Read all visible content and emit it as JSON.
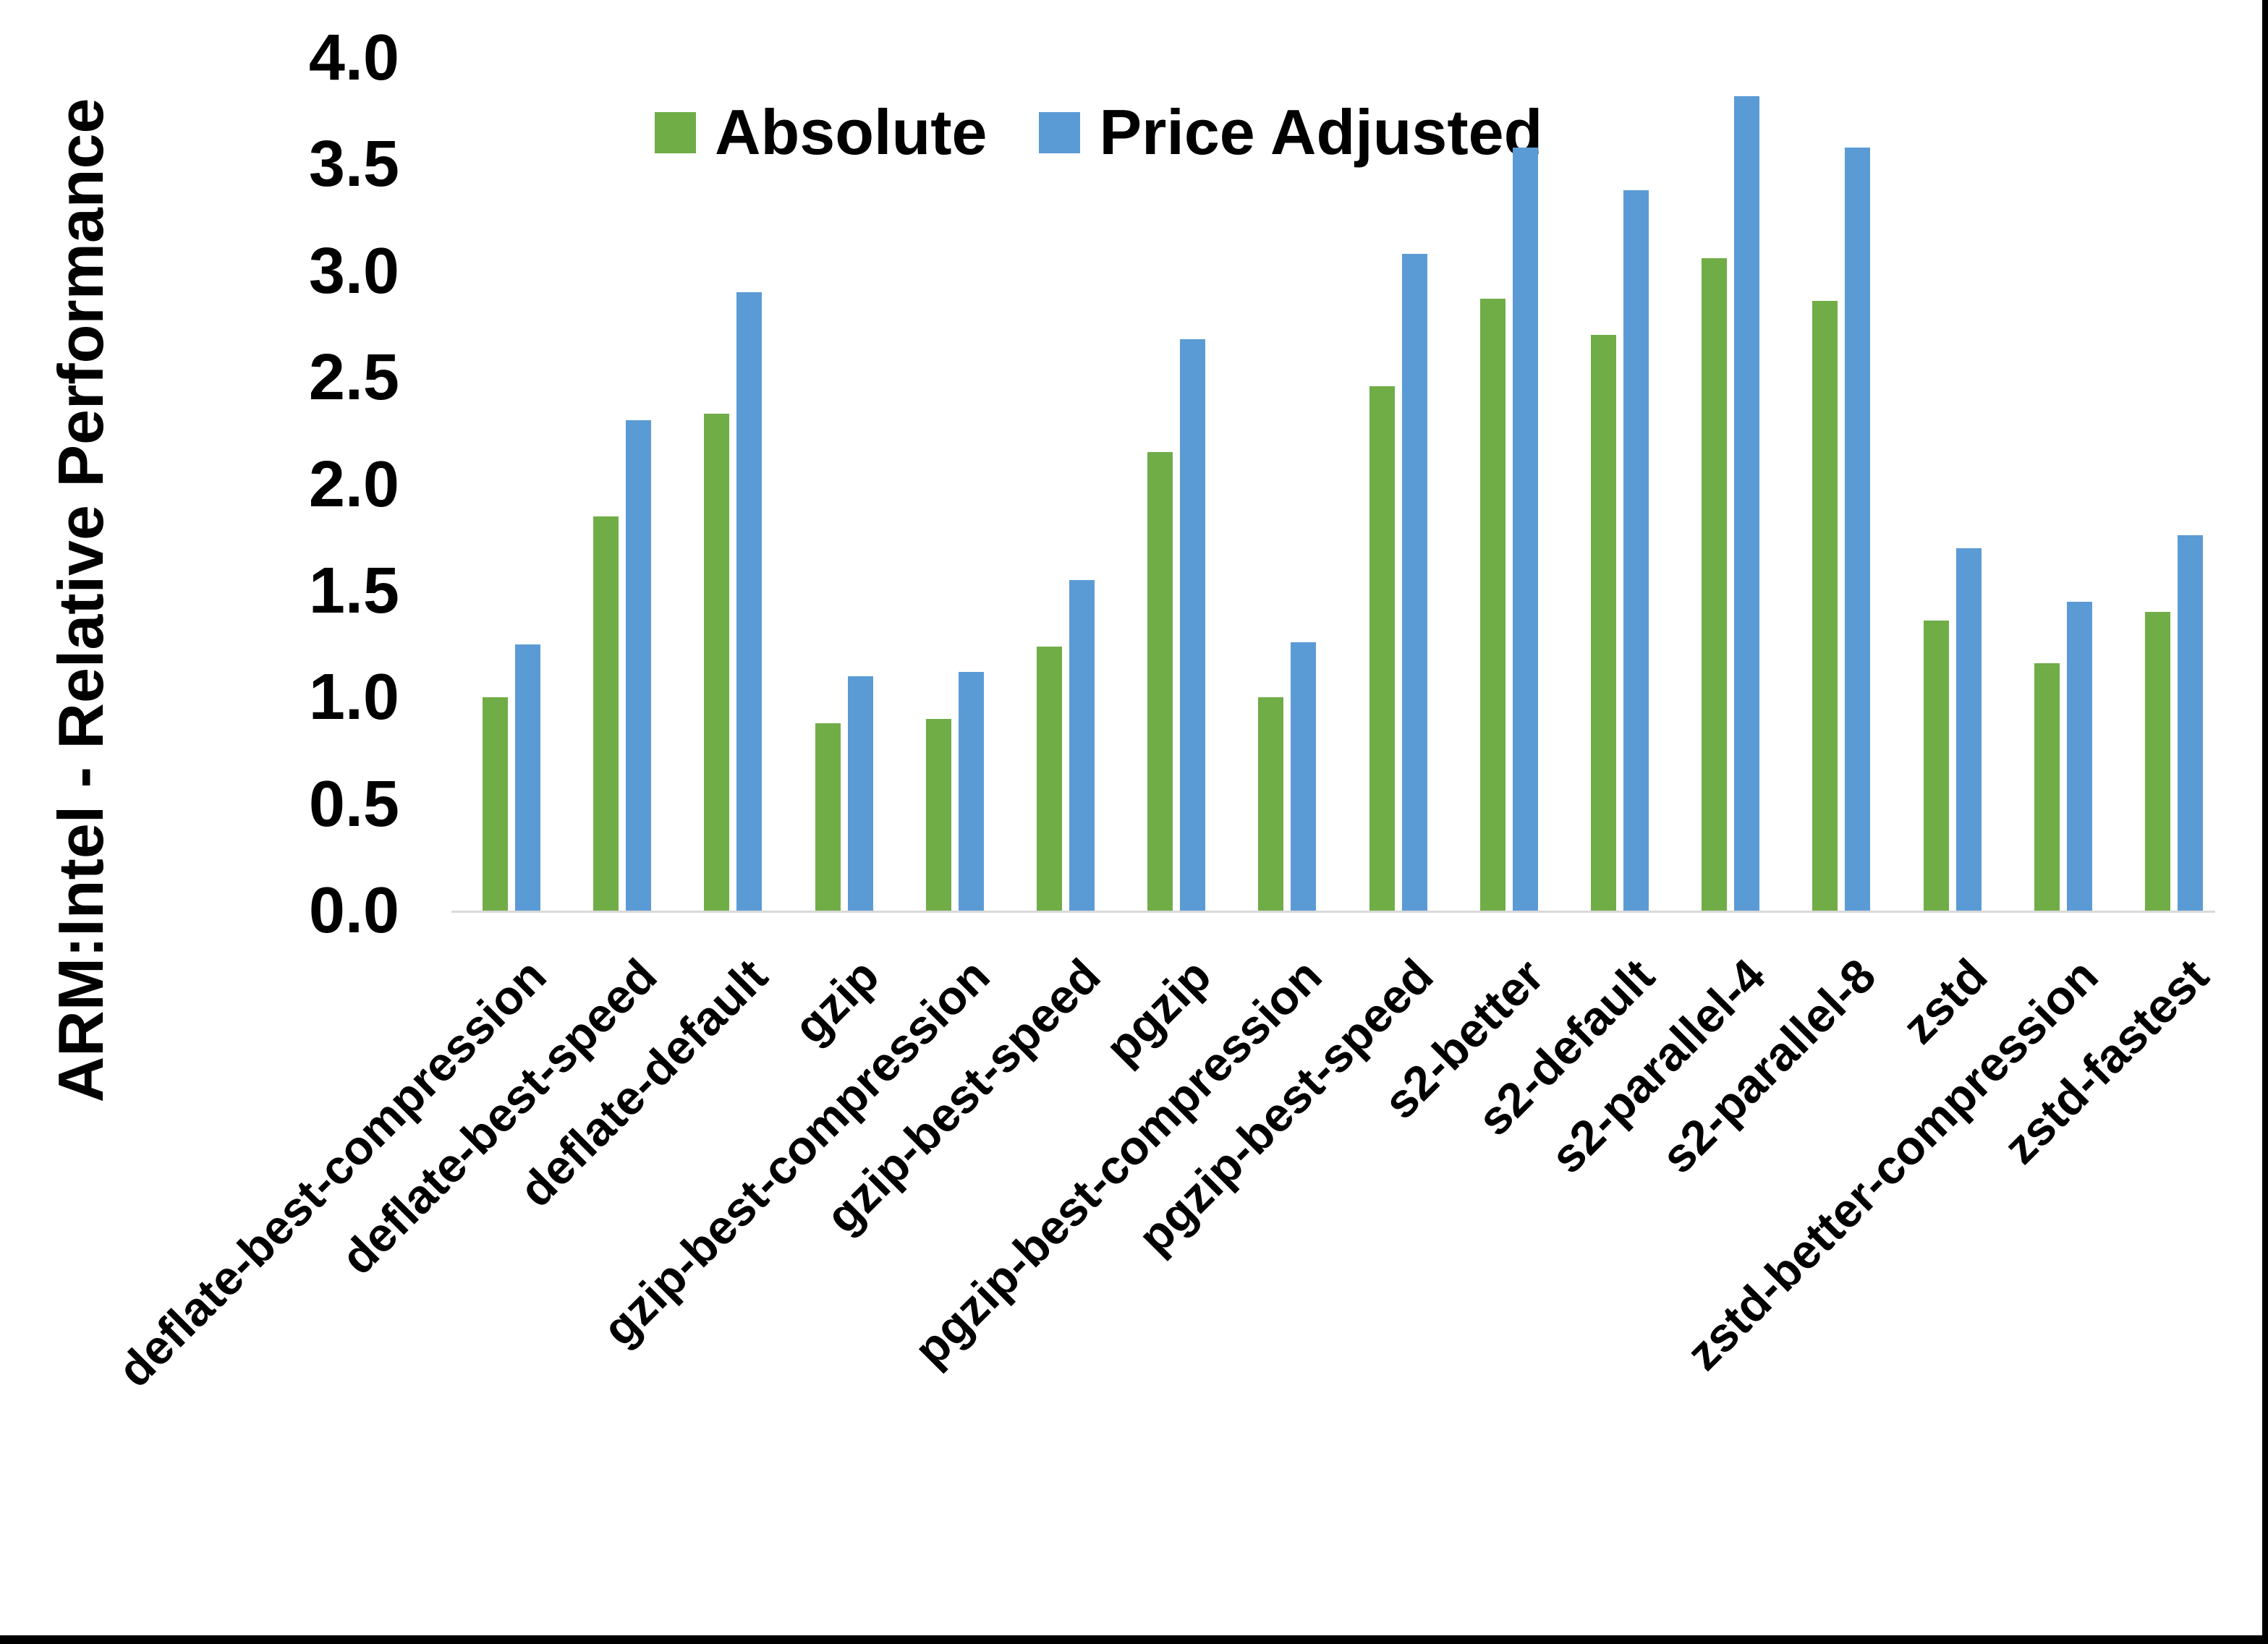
{
  "figure": {
    "background": "#ffffff",
    "border_bottom_color": "#000000",
    "border_right_color": "#000000"
  },
  "y_axis": {
    "title": "ARM:Intel - Relative Performance",
    "tick_labels": [
      "0.0",
      "0.5",
      "1.0",
      "1.5",
      "2.0",
      "2.5",
      "3.0",
      "3.5",
      "4.0"
    ],
    "min": 0.0,
    "max": 4.0,
    "step": 0.5,
    "axis_line_color": "#d9d9d9"
  },
  "legend": {
    "position": "top",
    "items": [
      {
        "label": "Absolute",
        "color": "#70AD47"
      },
      {
        "label": "Price Adjusted",
        "color": "#5B9BD5"
      }
    ]
  },
  "chart_data": {
    "type": "bar",
    "title": "",
    "xlabel": "",
    "ylabel": "ARM:Intel - Relative Performance",
    "ylim": [
      0.0,
      4.0
    ],
    "grid": false,
    "legend_position": "top",
    "categories": [
      "deflate-best-compression",
      "deflate-best-speed",
      "deflate-default",
      "gzip",
      "gzip-best-compression",
      "gzip-best-speed",
      "pgzip",
      "pgzip-best-compression",
      "pgzip-best-speed",
      "s2-better",
      "s2-default",
      "s2-parallel-4",
      "s2-parallel-8",
      "zstd",
      "zstd-better-compression",
      "zstd-fastest"
    ],
    "series": [
      {
        "name": "Absolute",
        "color": "#70AD47",
        "values": [
          1.0,
          1.85,
          2.33,
          0.88,
          0.9,
          1.24,
          2.15,
          1.0,
          2.46,
          2.87,
          2.7,
          3.06,
          2.86,
          1.36,
          1.16,
          1.4
        ]
      },
      {
        "name": "Price Adjusted",
        "color": "#5B9BD5",
        "values": [
          1.25,
          2.3,
          2.9,
          1.1,
          1.12,
          1.55,
          2.68,
          1.26,
          3.08,
          3.58,
          3.38,
          3.82,
          3.58,
          1.7,
          1.45,
          1.76
        ]
      }
    ]
  }
}
